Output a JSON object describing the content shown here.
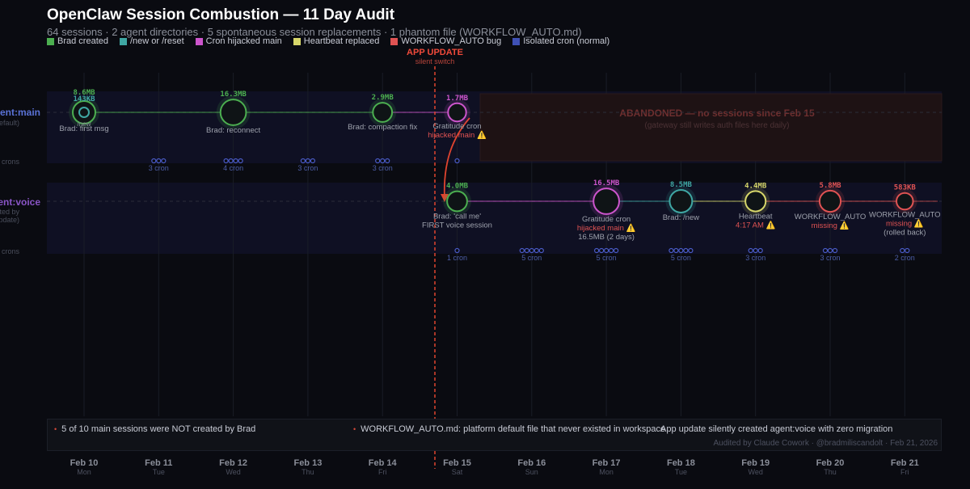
{
  "title": "OpenClaw Session Combustion — 11 Day Audit",
  "subtitle": "64 sessions · 2 agent directories · 5 spontaneous session replacements · 1 phantom file (WORKFLOW_AUTO.md)",
  "colors": {
    "brad": "#4caf50",
    "reset": "#3fa7a3",
    "cron": "#cc55cc",
    "heartbeat": "#d6d66a",
    "bug": "#e05353",
    "isolated": "#3f51b5"
  },
  "legend": [
    {
      "label": "Brad created",
      "color": "#4caf50"
    },
    {
      "label": "/new or /reset",
      "color": "#3fa7a3"
    },
    {
      "label": "Cron hijacked main",
      "color": "#cc55cc"
    },
    {
      "label": "Heartbeat replaced",
      "color": "#d6d66a"
    },
    {
      "label": "WORKFLOW_AUTO bug",
      "color": "#e05353"
    },
    {
      "label": "Isolated cron (normal)",
      "color": "#3f51b5"
    }
  ],
  "app_update": {
    "label": "APP UPDATE",
    "sub": "silent switch"
  },
  "lanes": {
    "main": {
      "label": "agent:main",
      "sub": "(default)",
      "crons": "crons"
    },
    "voice": {
      "label": "agent:voice",
      "sub1": "(created by",
      "sub2": "app update)",
      "crons": "crons"
    }
  },
  "abandoned": {
    "title": "ABANDONED — no sessions since Feb 15",
    "sub": "(gateway still writes auth files here daily)"
  },
  "days": [
    {
      "date": "Feb 10",
      "dow": "Mon"
    },
    {
      "date": "Feb 11",
      "dow": "Tue"
    },
    {
      "date": "Feb 12",
      "dow": "Wed"
    },
    {
      "date": "Feb 13",
      "dow": "Thu"
    },
    {
      "date": "Feb 14",
      "dow": "Fri"
    },
    {
      "date": "Feb 15",
      "dow": "Sat"
    },
    {
      "date": "Feb 16",
      "dow": "Sun"
    },
    {
      "date": "Feb 17",
      "dow": "Mon"
    },
    {
      "date": "Feb 18",
      "dow": "Tue"
    },
    {
      "date": "Feb 19",
      "dow": "Wed"
    },
    {
      "date": "Feb 20",
      "dow": "Thu"
    },
    {
      "date": "Feb 21",
      "dow": "Fri"
    }
  ],
  "main_events": [
    {
      "day": 0,
      "sizes": [
        "8.6MB",
        "143KB"
      ],
      "type": "brad",
      "inner": "reset",
      "lines": [
        "Brad: first msg"
      ],
      "extra": "/new"
    },
    {
      "day": 2,
      "sizes": [
        "16.3MB"
      ],
      "type": "brad",
      "lines": [
        "Brad: reconnect"
      ]
    },
    {
      "day": 4,
      "sizes": [
        "2.9MB"
      ],
      "type": "brad",
      "lines": [
        "Brad: compaction fix"
      ]
    },
    {
      "day": 5,
      "sizes": [
        "1.7MB"
      ],
      "type": "cron",
      "lines": [
        "Gratitude cron"
      ],
      "warn": "hijacked main ⚠️"
    }
  ],
  "voice_events": [
    {
      "day": 5,
      "sizes": [
        "4.0MB"
      ],
      "type": "brad",
      "lines": [
        "Brad: 'call me'",
        "FIRST voice session"
      ]
    },
    {
      "day": 7,
      "sizes": [
        "16.5MB"
      ],
      "type": "cron",
      "lines": [
        "Gratitude cron"
      ],
      "warn": "hijacked main ⚠️",
      "after": "16.5MB (2 days)"
    },
    {
      "day": 8,
      "sizes": [
        "8.5MB"
      ],
      "type": "reset",
      "lines": [
        "Brad: /new"
      ]
    },
    {
      "day": 9,
      "sizes": [
        "4.4MB"
      ],
      "type": "heartbeat",
      "lines": [
        "Heartbeat"
      ],
      "warn": "4:17 AM ⚠️"
    },
    {
      "day": 10,
      "sizes": [
        "5.8MB"
      ],
      "type": "bug",
      "lines": [
        "WORKFLOW_AUTO"
      ],
      "warn": "missing ⚠️"
    },
    {
      "day": 11,
      "sizes": [
        "583KB"
      ],
      "type": "bug",
      "lines": [
        "WORKFLOW_AUTO"
      ],
      "warn": "missing ⚠️",
      "after": "(rolled back)"
    }
  ],
  "main_crons": [
    {
      "day": 1,
      "count": 3,
      "label": "3 cron"
    },
    {
      "day": 2,
      "count": 4,
      "label": "4 cron"
    },
    {
      "day": 3,
      "count": 3,
      "label": "3 cron"
    },
    {
      "day": 4,
      "count": 3,
      "label": "3 cron"
    },
    {
      "day": 5,
      "count": 1,
      "label": ""
    }
  ],
  "voice_crons": [
    {
      "day": 5,
      "count": 1,
      "label": "1 cron"
    },
    {
      "day": 6,
      "count": 5,
      "label": "5 cron"
    },
    {
      "day": 7,
      "count": 5,
      "label": "5 cron"
    },
    {
      "day": 8,
      "count": 5,
      "label": "5 cron"
    },
    {
      "day": 9,
      "count": 3,
      "label": "3 cron"
    },
    {
      "day": 10,
      "count": 3,
      "label": "3 cron"
    },
    {
      "day": 11,
      "count": 2,
      "label": "2 cron"
    }
  ],
  "footer": {
    "note1": "5 of 10 main sessions were NOT created by Brad",
    "note2": "WORKFLOW_AUTO.md: platform default file that never existed in workspace",
    "note3": "App update silently created agent:voice with zero migration",
    "credit": "Audited by Claude Cowork · @bradmiliscandolt · Feb 21, 2026"
  }
}
